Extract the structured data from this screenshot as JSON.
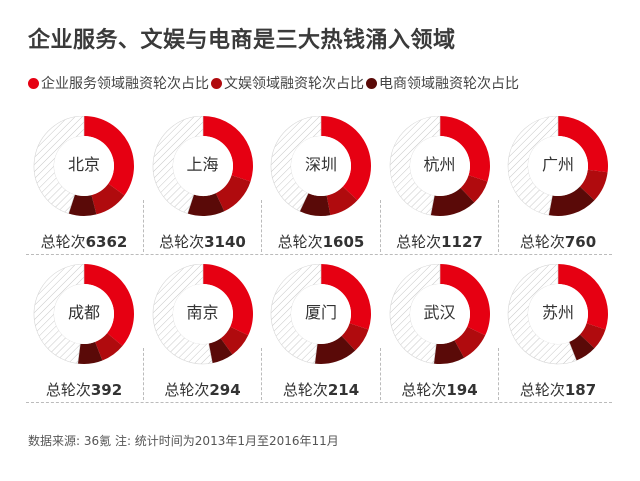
{
  "title": "企业服务、文娱与电商是三大热钱涌入领域",
  "legend": [
    {
      "label": "企业服务领域融资轮次占比",
      "color": "#e60012"
    },
    {
      "label": "文娱领域融资轮次占比",
      "color": "#b00b0e"
    },
    {
      "label": "电商领域融资轮次占比",
      "color": "#5a0a08"
    }
  ],
  "total_prefix": "总轮次",
  "source": "数据来源: 36氪  注: 统计时间为2013年1月至2016年11月",
  "chart_data": {
    "type": "pie",
    "variant": "donut-small-multiples",
    "title": "企业服务、文娱与电商是三大热钱涌入领域",
    "series_names": [
      "企业服务领域融资轮次占比",
      "文娱领域融资轮次占比",
      "电商领域融资轮次占比"
    ],
    "series_colors": [
      "#e60012",
      "#b00b0e",
      "#5a0a08"
    ],
    "remainder_style": "hatched",
    "cities": [
      {
        "name": "北京",
        "total": "6362",
        "shares": [
          0.35,
          0.11,
          0.09
        ]
      },
      {
        "name": "上海",
        "total": "3140",
        "shares": [
          0.3,
          0.13,
          0.12
        ]
      },
      {
        "name": "深圳",
        "total": "1605",
        "shares": [
          0.37,
          0.1,
          0.1
        ]
      },
      {
        "name": "杭州",
        "total": "1127",
        "shares": [
          0.3,
          0.08,
          0.15
        ]
      },
      {
        "name": "广州",
        "total": "760",
        "shares": [
          0.27,
          0.1,
          0.16
        ]
      },
      {
        "name": "成都",
        "total": "392",
        "shares": [
          0.36,
          0.08,
          0.08
        ]
      },
      {
        "name": "南京",
        "total": "294",
        "shares": [
          0.32,
          0.08,
          0.07
        ]
      },
      {
        "name": "厦门",
        "total": "214",
        "shares": [
          0.3,
          0.08,
          0.14
        ]
      },
      {
        "name": "武汉",
        "total": "194",
        "shares": [
          0.32,
          0.1,
          0.1
        ]
      },
      {
        "name": "苏州",
        "total": "187",
        "shares": [
          0.3,
          0.07,
          0.07
        ]
      }
    ]
  }
}
